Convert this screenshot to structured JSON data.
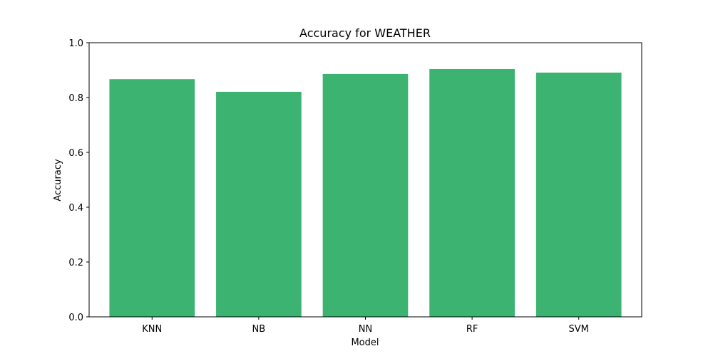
{
  "chart_data": {
    "type": "bar",
    "title": "Accuracy for WEATHER",
    "xlabel": "Model",
    "ylabel": "Accuracy",
    "categories": [
      "KNN",
      "NB",
      "NN",
      "RF",
      "SVM"
    ],
    "values": [
      0.867,
      0.821,
      0.886,
      0.904,
      0.891
    ],
    "ylim": [
      0.0,
      1.0
    ],
    "yticks": [
      "0.0",
      "0.2",
      "0.4",
      "0.6",
      "0.8",
      "1.0"
    ],
    "bar_color": "#3cb371",
    "grid": false,
    "legend": "none"
  }
}
